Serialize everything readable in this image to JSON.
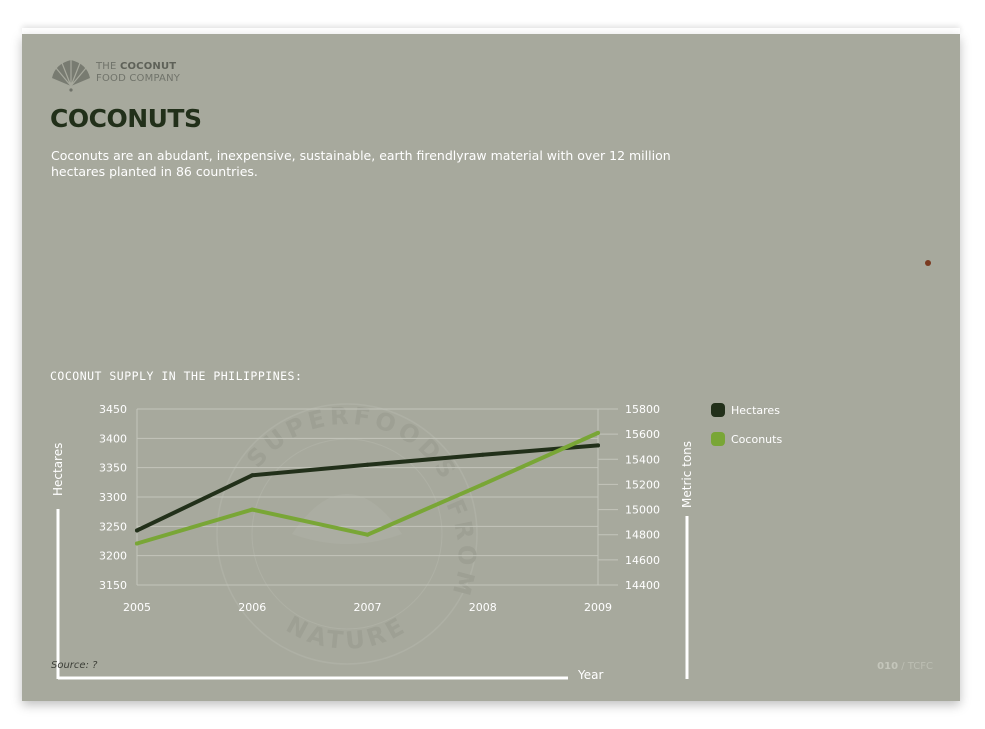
{
  "brand": {
    "line1_prefix": "THE",
    "line1_bold": "COCONUT",
    "line2": "FOOD COMPANY"
  },
  "title": "COCONUTS",
  "intro": "Coconuts are an abudant, inexpensive, sustainable, earth firendlyraw material with over 12 million hectares planted in 86 countries.",
  "chart_title": "COCONUT SUPPLY IN THE PHILIPPINES:",
  "watermark": {
    "top": "SUPERFOODS",
    "right": "FROM",
    "bottom": "NATURE"
  },
  "source_label": "Source:  ?",
  "page_number": {
    "num": "010",
    "suffix": " / TCFC"
  },
  "colors": {
    "background": "#a7a99d",
    "hectares": "#22301a",
    "coconuts": "#79a636",
    "gridline": "#c3c5bb",
    "accent_dot": "#7a3a20"
  },
  "chart_data": {
    "type": "line",
    "title": "COCONUT SUPPLY IN THE PHILIPPINES:",
    "categories": [
      "2005",
      "2006",
      "2007",
      "2008",
      "2009"
    ],
    "xlabel": "Year",
    "ylabel": "Hectares",
    "y2label": "Metric tons",
    "ylim": [
      3150,
      3450
    ],
    "yticks": [
      3150,
      3200,
      3250,
      3300,
      3350,
      3400,
      3450
    ],
    "y2lim": [
      14400,
      15800
    ],
    "y2ticks": [
      14400,
      14600,
      14800,
      15000,
      15200,
      15400,
      15600,
      15800
    ],
    "grid": true,
    "legend_position": "right",
    "series": [
      {
        "name": "Hectares",
        "axis": "left",
        "color": "#22301a",
        "values": [
          3243,
          3337,
          3355,
          3372,
          3388
        ]
      },
      {
        "name": "Coconuts",
        "axis": "right",
        "color": "#79a636",
        "values": [
          14730,
          15000,
          14800,
          15200,
          15610
        ]
      }
    ]
  }
}
